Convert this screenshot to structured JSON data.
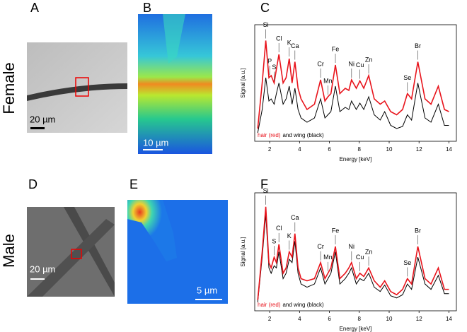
{
  "panels": {
    "letters": [
      "A",
      "B",
      "C",
      "D",
      "E",
      "F"
    ],
    "rows": [
      "Female",
      "Male"
    ],
    "scales": [
      "20 µm",
      "10 µm",
      "20 µm",
      "5 µm"
    ]
  },
  "chart_data": [
    {
      "type": "line",
      "xlabel": "Energy [keV]",
      "ylabel": "Signal [a.u.]",
      "xlim": [
        1,
        14.5
      ],
      "ylim": [
        0,
        1.1
      ],
      "xticks": [
        2,
        4,
        6,
        8,
        10,
        12,
        14
      ],
      "x": [
        1.2,
        1.5,
        1.74,
        1.95,
        2.1,
        2.3,
        2.45,
        2.62,
        2.9,
        3.1,
        3.31,
        3.5,
        3.69,
        3.9,
        4.1,
        4.5,
        5.0,
        5.41,
        5.7,
        5.9,
        6.1,
        6.4,
        6.7,
        7.06,
        7.3,
        7.48,
        7.8,
        8.04,
        8.3,
        8.63,
        9.0,
        9.4,
        9.7,
        10.1,
        10.5,
        10.9,
        11.22,
        11.5,
        11.92,
        12.4,
        12.8,
        13.29,
        13.7,
        14.0
      ],
      "series": [
        {
          "name": "hair (red)",
          "color": "#e8141c",
          "values": [
            0.12,
            0.55,
            0.95,
            0.6,
            0.62,
            0.55,
            0.68,
            0.82,
            0.55,
            0.6,
            0.78,
            0.55,
            0.75,
            0.5,
            0.4,
            0.3,
            0.35,
            0.58,
            0.38,
            0.42,
            0.45,
            0.72,
            0.45,
            0.5,
            0.48,
            0.58,
            0.5,
            0.57,
            0.5,
            0.62,
            0.4,
            0.35,
            0.38,
            0.28,
            0.25,
            0.3,
            0.45,
            0.4,
            0.75,
            0.4,
            0.35,
            0.52,
            0.3,
            0.28
          ]
        },
        {
          "name": "and wing (black)",
          "color": "#000000",
          "values": [
            0.08,
            0.3,
            0.6,
            0.38,
            0.4,
            0.35,
            0.45,
            0.55,
            0.35,
            0.4,
            0.52,
            0.35,
            0.5,
            0.3,
            0.22,
            0.18,
            0.22,
            0.4,
            0.22,
            0.25,
            0.28,
            0.52,
            0.28,
            0.32,
            0.3,
            0.38,
            0.3,
            0.36,
            0.3,
            0.42,
            0.25,
            0.2,
            0.28,
            0.15,
            0.12,
            0.14,
            0.25,
            0.2,
            0.55,
            0.22,
            0.18,
            0.35,
            0.15,
            0.15
          ]
        }
      ],
      "annotations": [
        {
          "text": "Si",
          "x": 1.74
        },
        {
          "text": "P",
          "x": 2.0
        },
        {
          "text": "S",
          "x": 2.3
        },
        {
          "text": "Cl",
          "x": 2.62
        },
        {
          "text": "K",
          "x": 3.31
        },
        {
          "text": "Ca",
          "x": 3.69
        },
        {
          "text": "Cr",
          "x": 5.41
        },
        {
          "text": "Mn",
          "x": 5.9
        },
        {
          "text": "Fe",
          "x": 6.4
        },
        {
          "text": "Ni",
          "x": 7.48
        },
        {
          "text": "Cu",
          "x": 8.04
        },
        {
          "text": "Zn",
          "x": 8.63
        },
        {
          "text": "Se",
          "x": 11.22
        },
        {
          "text": "Br",
          "x": 11.92
        }
      ]
    },
    {
      "type": "line",
      "xlabel": "Energy [keV]",
      "ylabel": "Signal [a.u.]",
      "xlim": [
        1,
        14.5
      ],
      "ylim": [
        0,
        1.1
      ],
      "xticks": [
        2,
        4,
        6,
        8,
        10,
        12,
        14
      ],
      "x": [
        1.2,
        1.5,
        1.74,
        1.95,
        2.1,
        2.3,
        2.45,
        2.62,
        2.9,
        3.1,
        3.31,
        3.5,
        3.69,
        3.9,
        4.1,
        4.5,
        5.0,
        5.41,
        5.7,
        5.9,
        6.1,
        6.4,
        6.7,
        7.06,
        7.3,
        7.48,
        7.8,
        8.04,
        8.3,
        8.63,
        9.0,
        9.4,
        9.7,
        10.1,
        10.5,
        10.9,
        11.22,
        11.5,
        11.92,
        12.4,
        12.8,
        13.29,
        13.7,
        14.0
      ],
      "series": [
        {
          "name": "hair (red)",
          "color": "#e8141c",
          "values": [
            0.1,
            0.55,
            0.97,
            0.45,
            0.4,
            0.5,
            0.45,
            0.62,
            0.35,
            0.4,
            0.55,
            0.5,
            0.72,
            0.4,
            0.3,
            0.28,
            0.3,
            0.45,
            0.3,
            0.35,
            0.4,
            0.6,
            0.3,
            0.35,
            0.4,
            0.45,
            0.3,
            0.35,
            0.32,
            0.4,
            0.28,
            0.22,
            0.28,
            0.18,
            0.15,
            0.2,
            0.3,
            0.25,
            0.6,
            0.3,
            0.25,
            0.4,
            0.2,
            0.2
          ]
        },
        {
          "name": "and wing (black)",
          "color": "#000000",
          "values": [
            0.08,
            0.5,
            0.9,
            0.4,
            0.35,
            0.42,
            0.4,
            0.55,
            0.3,
            0.35,
            0.48,
            0.45,
            0.65,
            0.35,
            0.25,
            0.22,
            0.25,
            0.4,
            0.25,
            0.3,
            0.35,
            0.55,
            0.25,
            0.3,
            0.35,
            0.4,
            0.25,
            0.3,
            0.28,
            0.35,
            0.22,
            0.18,
            0.24,
            0.14,
            0.12,
            0.15,
            0.25,
            0.2,
            0.5,
            0.25,
            0.2,
            0.33,
            0.16,
            0.16
          ]
        }
      ],
      "annotations": [
        {
          "text": "Si",
          "x": 1.74
        },
        {
          "text": "S",
          "x": 2.3
        },
        {
          "text": "Cl",
          "x": 2.62
        },
        {
          "text": "K",
          "x": 3.31
        },
        {
          "text": "Ca",
          "x": 3.69
        },
        {
          "text": "Cr",
          "x": 5.41
        },
        {
          "text": "Mn",
          "x": 5.9
        },
        {
          "text": "Fe",
          "x": 6.4
        },
        {
          "text": "Ni",
          "x": 7.48
        },
        {
          "text": "Cu",
          "x": 8.04
        },
        {
          "text": "Zn",
          "x": 8.63
        },
        {
          "text": "Se",
          "x": 11.22
        },
        {
          "text": "Br",
          "x": 11.92
        }
      ]
    }
  ]
}
